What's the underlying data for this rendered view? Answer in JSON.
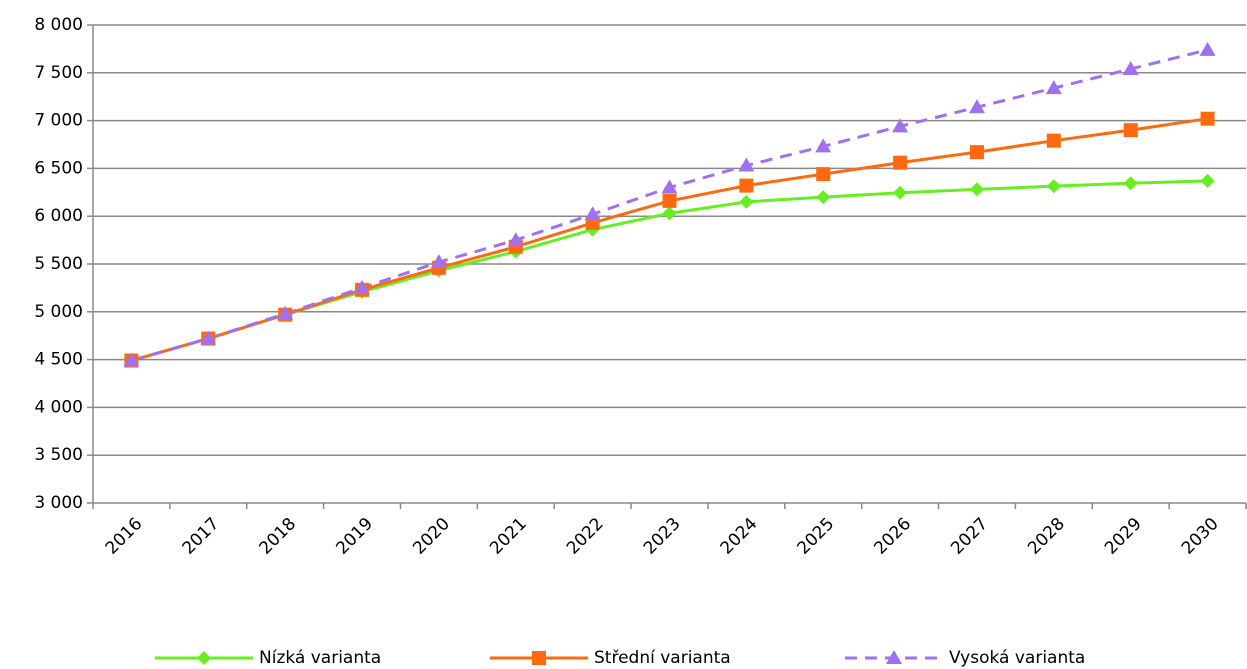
{
  "chart_data": {
    "type": "line",
    "categories": [
      "2016",
      "2017",
      "2018",
      "2019",
      "2020",
      "2021",
      "2022",
      "2023",
      "2024",
      "2025",
      "2026",
      "2027",
      "2028",
      "2029",
      "2030"
    ],
    "series": [
      {
        "name": "Nízká varianta",
        "color": "#66ee22",
        "marker": "diamond",
        "dash": false,
        "values": [
          4490,
          4720,
          4970,
          5210,
          5430,
          5630,
          5860,
          6030,
          6150,
          6200,
          6245,
          6280,
          6315,
          6345,
          6370
        ]
      },
      {
        "name": "Střední varianta",
        "color": "#ff6a10",
        "marker": "square",
        "dash": false,
        "values": [
          4490,
          4720,
          4970,
          5230,
          5460,
          5680,
          5930,
          6160,
          6320,
          6440,
          6560,
          6670,
          6790,
          6900,
          7020
        ]
      },
      {
        "name": "Vysoká varianta",
        "color": "#a070f0",
        "marker": "triangle",
        "dash": true,
        "values": [
          4490,
          4720,
          4980,
          5250,
          5520,
          5750,
          6020,
          6300,
          6530,
          6730,
          6940,
          7140,
          7340,
          7540,
          7740
        ]
      }
    ],
    "ylim": [
      3000,
      8000
    ],
    "yticks": [
      {
        "value": 3000,
        "label": "3 000"
      },
      {
        "value": 3500,
        "label": "3 500"
      },
      {
        "value": 4000,
        "label": "4 000"
      },
      {
        "value": 4500,
        "label": "4 500"
      },
      {
        "value": 5000,
        "label": "5 000"
      },
      {
        "value": 5500,
        "label": "5 500"
      },
      {
        "value": 6000,
        "label": "6 000"
      },
      {
        "value": 6500,
        "label": "6 500"
      },
      {
        "value": 7000,
        "label": "7 000"
      },
      {
        "value": 7500,
        "label": "7 500"
      },
      {
        "value": 8000,
        "label": "8 000"
      }
    ],
    "grid": true,
    "legend": "bottom"
  }
}
